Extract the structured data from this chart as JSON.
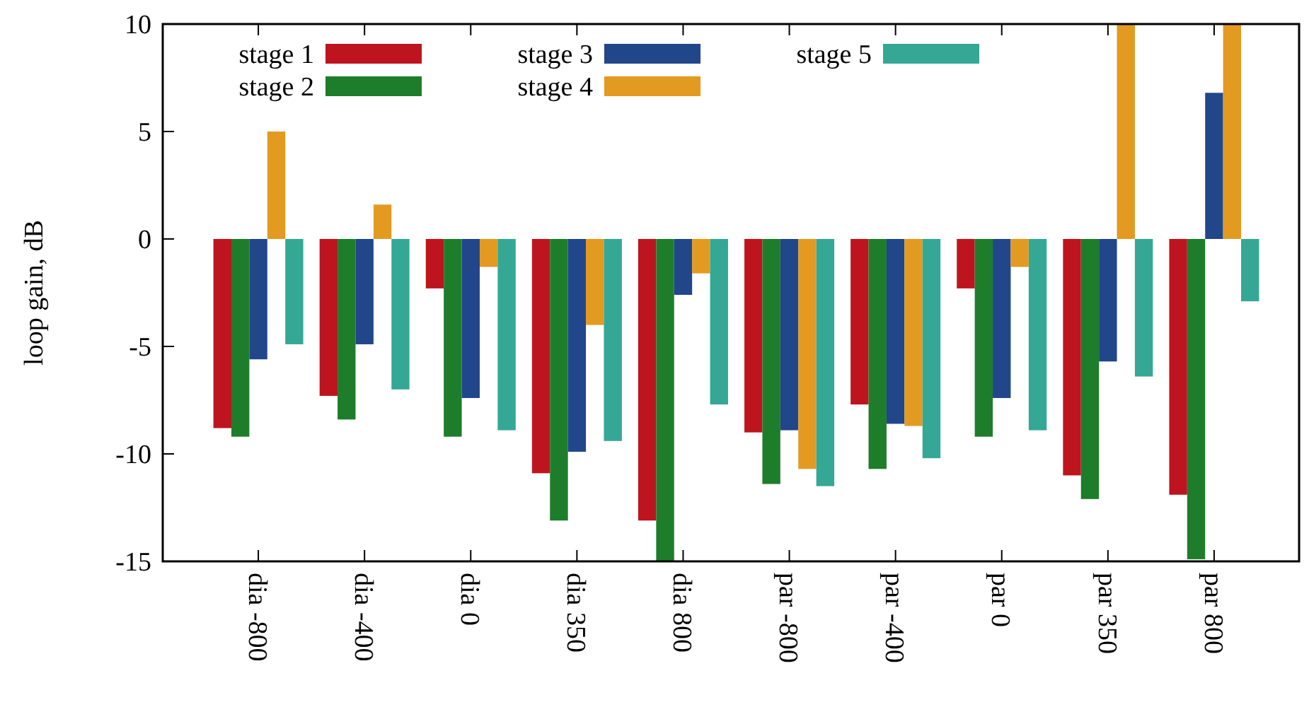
{
  "chart_data": {
    "type": "bar",
    "ylabel": "loop gain, dB",
    "categories": [
      "dia -800",
      "dia -400",
      "dia 0",
      "dia 350",
      "dia 800",
      "par -800",
      "par -400",
      "par 0",
      "par 350",
      "par 800"
    ],
    "series": [
      {
        "name": "stage 1",
        "color": "#be1420",
        "values": [
          -8.8,
          -7.3,
          -2.3,
          -10.9,
          -13.1,
          -9.0,
          -7.7,
          -2.3,
          -11.0,
          -11.9
        ]
      },
      {
        "name": "stage 2",
        "color": "#1e7d2b",
        "values": [
          -9.2,
          -8.4,
          -9.2,
          -13.1,
          -15,
          -11.4,
          -10.7,
          -9.2,
          -12.1,
          -14.9
        ]
      },
      {
        "name": "stage 3",
        "color": "#21468a",
        "values": [
          -5.6,
          -4.9,
          -7.4,
          -9.9,
          -2.6,
          -8.9,
          -8.6,
          -7.4,
          -5.7,
          6.8
        ]
      },
      {
        "name": "stage 4",
        "color": "#e39a20",
        "values": [
          5.0,
          1.6,
          -1.3,
          -4.0,
          -1.6,
          -10.7,
          -8.7,
          -1.3,
          10,
          10
        ]
      },
      {
        "name": "stage 5",
        "color": "#34a895",
        "values": [
          -4.9,
          -7.0,
          -8.9,
          -9.4,
          -7.7,
          -11.5,
          -10.2,
          -8.9,
          -6.4,
          -2.9
        ]
      }
    ],
    "ylim": [
      -15,
      10
    ],
    "yticks": [
      -15,
      -10,
      -5,
      0,
      5,
      10
    ],
    "legend": "top",
    "grid": false
  }
}
